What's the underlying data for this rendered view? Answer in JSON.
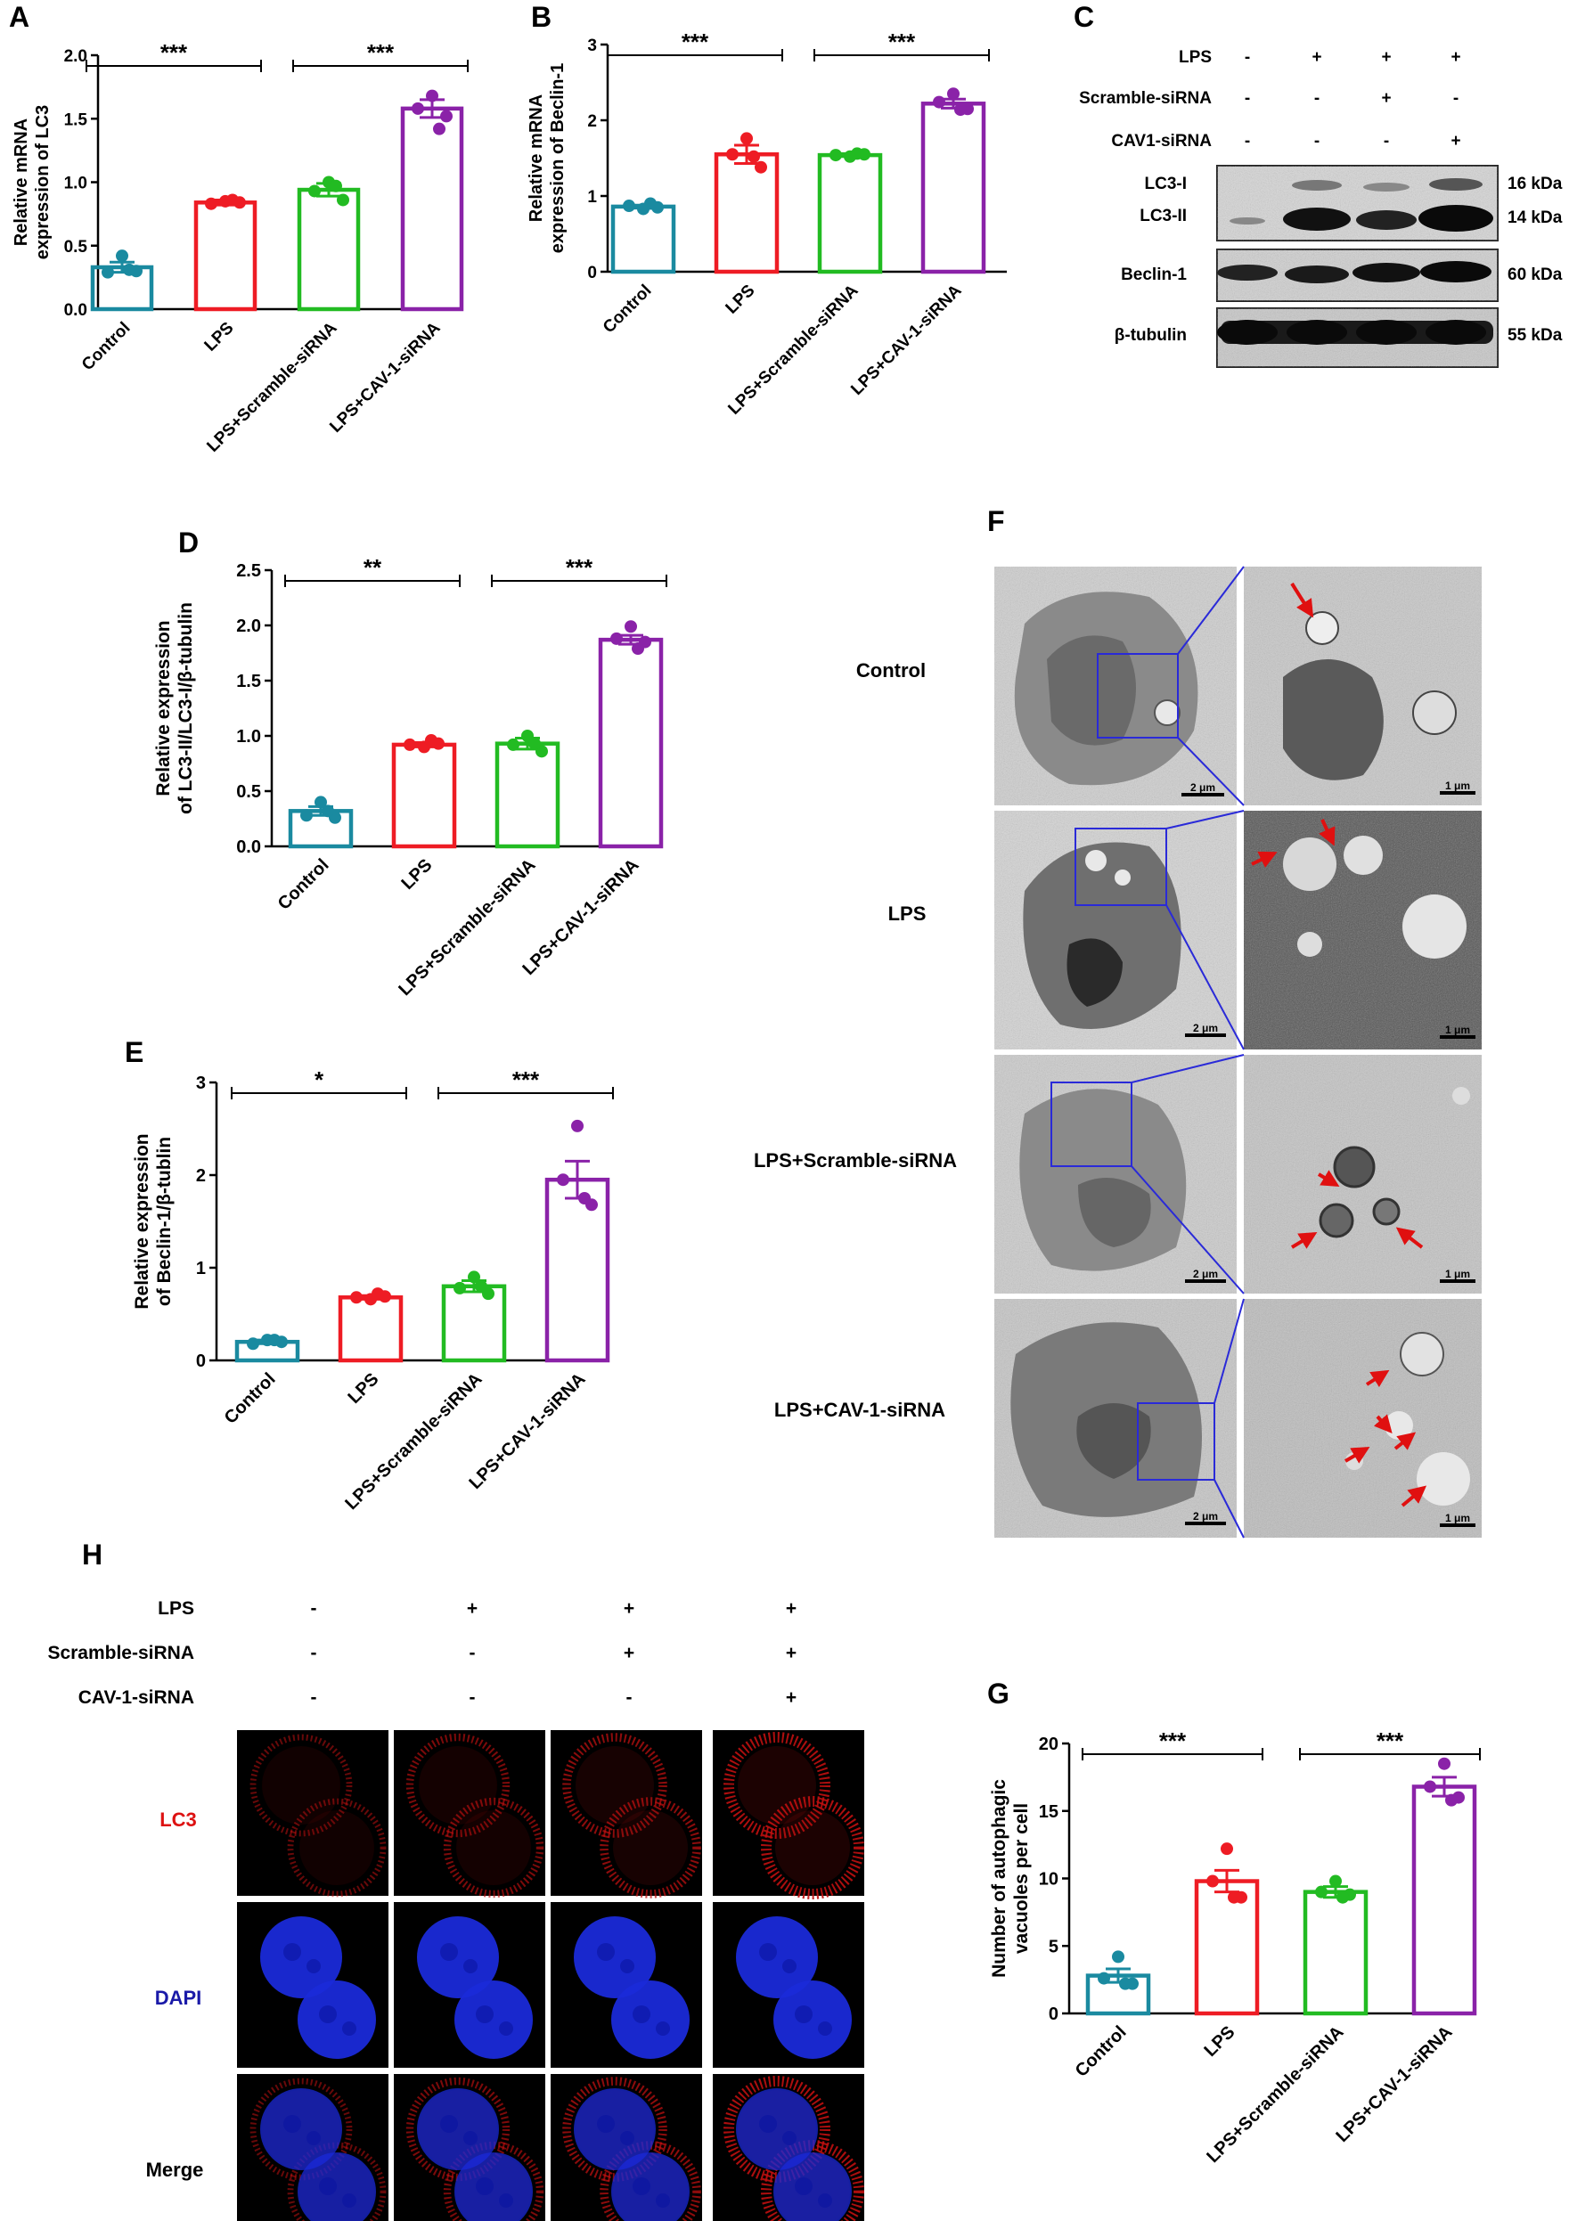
{
  "colors": {
    "control": "#1a8aa0",
    "lps": "#ee1c24",
    "scramble": "#22bb22",
    "cav1": "#8a22a8",
    "lc3_text": "#dd1111",
    "dapi_text": "#1a1aa8",
    "box": "#2a2ad8",
    "arrow": "#e01010"
  },
  "groups": [
    "Control",
    "LPS",
    "LPS+Scramble-siRNA",
    "LPS+CAV-1-siRNA"
  ],
  "chart_data": [
    {
      "panel": "A",
      "type": "bar",
      "ylabel_line1": "Relative mRNA",
      "ylabel_line2": "expression of LC3",
      "categories": [
        "Control",
        "LPS",
        "LPS+Scramble-siRNA",
        "LPS+CAV-1-siRNA"
      ],
      "values": [
        0.33,
        0.84,
        0.94,
        1.58
      ],
      "errors": [
        0.04,
        0.02,
        0.05,
        0.07
      ],
      "points": [
        [
          0.42,
          0.29,
          0.3,
          0.31
        ],
        [
          0.85,
          0.83,
          0.84,
          0.86
        ],
        [
          1.0,
          0.93,
          0.86,
          0.97
        ],
        [
          1.68,
          1.58,
          1.52,
          1.42
        ]
      ],
      "ylim": [
        0,
        2.0
      ],
      "yticks": [
        "0.0",
        "0.5",
        "1.0",
        "1.5",
        "2.0"
      ],
      "tick_values": [
        0,
        0.5,
        1.0,
        1.5,
        2.0
      ],
      "sig": [
        {
          "from": 0,
          "to": 1,
          "label": "***"
        },
        {
          "from": 2,
          "to": 3,
          "label": "***"
        }
      ]
    },
    {
      "panel": "B",
      "type": "bar",
      "ylabel_line1": "Relative mRNA",
      "ylabel_line2": "expression of Beclin-1",
      "categories": [
        "Control",
        "LPS",
        "LPS+Scramble-siRNA",
        "LPS+CAV-1-siRNA"
      ],
      "values": [
        0.86,
        1.55,
        1.54,
        2.22
      ],
      "errors": [
        0.02,
        0.12,
        0.02,
        0.06
      ],
      "points": [
        [
          0.83,
          0.87,
          0.85,
          0.9
        ],
        [
          1.76,
          1.55,
          1.38,
          1.52
        ],
        [
          1.52,
          1.54,
          1.55,
          1.56
        ],
        [
          2.35,
          2.24,
          2.15,
          2.14
        ]
      ],
      "ylim": [
        0,
        3
      ],
      "yticks": [
        "0",
        "1",
        "2",
        "3"
      ],
      "tick_values": [
        0,
        1,
        2,
        3
      ],
      "sig": [
        {
          "from": 0,
          "to": 1,
          "label": "***"
        },
        {
          "from": 2,
          "to": 3,
          "label": "***"
        }
      ]
    },
    {
      "panel": "D",
      "type": "bar",
      "ylabel_line1": "Relative expression",
      "ylabel_line2": "of LC3-II/LC3-I/β-tubulin",
      "categories": [
        "Control",
        "LPS",
        "LPS+Scramble-siRNA",
        "LPS+CAV-1-siRNA"
      ],
      "values": [
        0.32,
        0.92,
        0.93,
        1.87
      ],
      "errors": [
        0.04,
        0.02,
        0.05,
        0.04
      ],
      "points": [
        [
          0.4,
          0.28,
          0.26,
          0.32
        ],
        [
          0.9,
          0.92,
          0.93,
          0.96
        ],
        [
          1.0,
          0.92,
          0.86,
          0.93
        ],
        [
          1.99,
          1.88,
          1.85,
          1.79
        ]
      ],
      "ylim": [
        0,
        2.5
      ],
      "yticks": [
        "0.0",
        "0.5",
        "1.0",
        "1.5",
        "2.0",
        "2.5"
      ],
      "tick_values": [
        0,
        0.5,
        1.0,
        1.5,
        2.0,
        2.5
      ],
      "sig": [
        {
          "from": 0,
          "to": 1,
          "label": "**"
        },
        {
          "from": 2,
          "to": 3,
          "label": "***"
        }
      ]
    },
    {
      "panel": "E",
      "type": "bar",
      "ylabel_line1": "Relative expression",
      "ylabel_line2": "of Beclin-1/β-tublin",
      "categories": [
        "Control",
        "LPS",
        "LPS+Scramble-siRNA",
        "LPS+CAV-1-siRNA"
      ],
      "values": [
        0.2,
        0.68,
        0.8,
        1.95
      ],
      "errors": [
        0.02,
        0.02,
        0.06,
        0.2
      ],
      "points": [
        [
          0.22,
          0.18,
          0.2,
          0.22
        ],
        [
          0.66,
          0.68,
          0.69,
          0.72
        ],
        [
          0.9,
          0.78,
          0.72,
          0.8
        ],
        [
          2.53,
          1.95,
          1.68,
          1.75
        ]
      ],
      "ylim": [
        0,
        3
      ],
      "yticks": [
        "0",
        "1",
        "2",
        "3"
      ],
      "tick_values": [
        0,
        1,
        2,
        3
      ],
      "sig": [
        {
          "from": 0,
          "to": 1,
          "label": "*"
        },
        {
          "from": 2,
          "to": 3,
          "label": "***"
        }
      ]
    },
    {
      "panel": "G",
      "type": "bar",
      "ylabel_line1": "Number of autophagic",
      "ylabel_line2": "vacuoles per cell",
      "categories": [
        "Control",
        "LPS",
        "LPS+Scramble-siRNA",
        "LPS+CAV-1-siRNA"
      ],
      "values": [
        2.8,
        9.8,
        9.0,
        16.8
      ],
      "errors": [
        0.5,
        0.8,
        0.4,
        0.7
      ],
      "points": [
        [
          4.2,
          2.6,
          2.2,
          2.2
        ],
        [
          12.2,
          9.8,
          8.6,
          8.6
        ],
        [
          9.8,
          9.0,
          8.8,
          8.6
        ],
        [
          18.5,
          16.8,
          16.0,
          15.8
        ]
      ],
      "ylim": [
        0,
        20
      ],
      "yticks": [
        "0",
        "5",
        "10",
        "15",
        "20"
      ],
      "tick_values": [
        0,
        5,
        10,
        15,
        20
      ],
      "sig": [
        {
          "from": 0,
          "to": 1,
          "label": "***"
        },
        {
          "from": 2,
          "to": 3,
          "label": "***"
        }
      ]
    }
  ],
  "panel_letters": {
    "A": "A",
    "B": "B",
    "C": "C",
    "D": "D",
    "E": "E",
    "F": "F",
    "G": "G",
    "H": "H"
  },
  "western": {
    "rows": [
      {
        "label": "LPS",
        "signs": [
          "-",
          "+",
          "+",
          "+"
        ]
      },
      {
        "label": "Scramble-siRNA",
        "signs": [
          "-",
          "-",
          "+",
          "-"
        ]
      },
      {
        "label": "CAV1-siRNA",
        "signs": [
          "-",
          "-",
          "-",
          "+"
        ]
      }
    ],
    "bands": [
      {
        "labels": [
          "LC3-I",
          "LC3-II"
        ],
        "kda": [
          "16 kDa",
          "14 kDa"
        ]
      },
      {
        "labels": [
          "Beclin-1"
        ],
        "kda": [
          "60 kDa"
        ]
      },
      {
        "labels": [
          "β-tubulin"
        ],
        "kda": [
          "55 kDa"
        ]
      }
    ]
  },
  "tem": {
    "rows": [
      "Control",
      "LPS",
      "LPS+Scramble-siRNA",
      "LPS+CAV-1-siRNA"
    ],
    "scale_left": "2 μm",
    "scale_right": "1 μm"
  },
  "confocal": {
    "rows": [
      {
        "label": "LPS",
        "signs": [
          "-",
          "+",
          "+",
          "+"
        ]
      },
      {
        "label": "Scramble-siRNA",
        "signs": [
          "-",
          "-",
          "+",
          "+"
        ]
      },
      {
        "label": "CAV-1-siRNA",
        "signs": [
          "-",
          "-",
          "-",
          "+"
        ]
      }
    ],
    "channels": [
      "LC3",
      "DAPI",
      "Merge"
    ]
  }
}
